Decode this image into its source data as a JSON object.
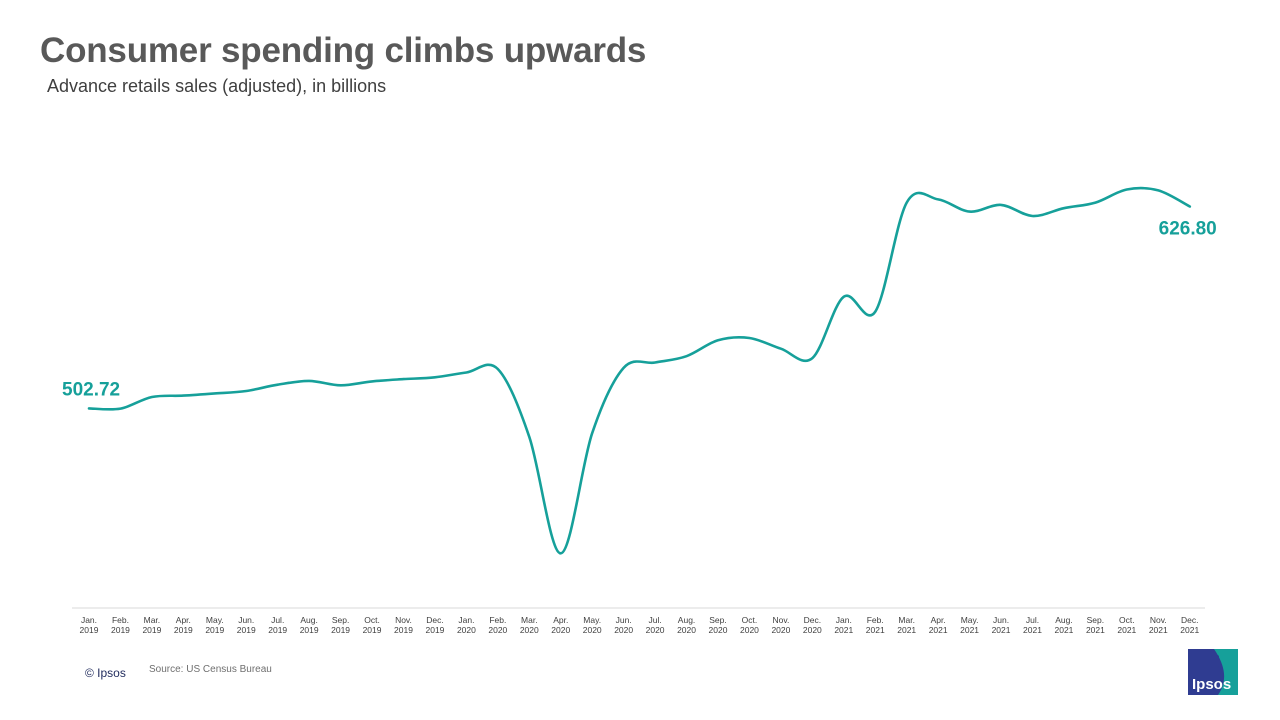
{
  "header": {
    "title": "Consumer spending climbs upwards",
    "subtitle": "Advance retails sales (adjusted), in billions"
  },
  "footer": {
    "copyright": "© Ipsos",
    "source": "Source: US Census Bureau",
    "logo_text": "Ipsos"
  },
  "colors": {
    "line": "#16a09a",
    "axis": "#d9d9d9",
    "tick_label": "#404040",
    "logo_blue": "#2f3c91",
    "logo_teal": "#16a09a"
  },
  "chart_data": {
    "type": "line",
    "title": "Consumer spending climbs upwards",
    "subtitle": "Advance retails sales (adjusted), in billions",
    "categories": [
      [
        "Jan.",
        "2019"
      ],
      [
        "Feb.",
        "2019"
      ],
      [
        "Mar.",
        "2019"
      ],
      [
        "Apr.",
        "2019"
      ],
      [
        "May.",
        "2019"
      ],
      [
        "Jun.",
        "2019"
      ],
      [
        "Jul.",
        "2019"
      ],
      [
        "Aug.",
        "2019"
      ],
      [
        "Sep.",
        "2019"
      ],
      [
        "Oct.",
        "2019"
      ],
      [
        "Nov.",
        "2019"
      ],
      [
        "Dec.",
        "2019"
      ],
      [
        "Jan.",
        "2020"
      ],
      [
        "Feb.",
        "2020"
      ],
      [
        "Mar.",
        "2020"
      ],
      [
        "Apr.",
        "2020"
      ],
      [
        "May.",
        "2020"
      ],
      [
        "Jun.",
        "2020"
      ],
      [
        "Jul.",
        "2020"
      ],
      [
        "Aug.",
        "2020"
      ],
      [
        "Sep.",
        "2020"
      ],
      [
        "Oct.",
        "2020"
      ],
      [
        "Nov.",
        "2020"
      ],
      [
        "Dec.",
        "2020"
      ],
      [
        "Jan.",
        "2021"
      ],
      [
        "Feb.",
        "2021"
      ],
      [
        "Mar.",
        "2021"
      ],
      [
        "Apr.",
        "2021"
      ],
      [
        "May.",
        "2021"
      ],
      [
        "Jun.",
        "2021"
      ],
      [
        "Jul.",
        "2021"
      ],
      [
        "Aug.",
        "2021"
      ],
      [
        "Sep.",
        "2021"
      ],
      [
        "Oct.",
        "2021"
      ],
      [
        "Nov.",
        "2021"
      ],
      [
        "Dec.",
        "2021"
      ]
    ],
    "series": [
      {
        "values": [
          502.72,
          502.6,
          509.7,
          510.6,
          511.9,
          513.4,
          517.3,
          519.6,
          516.9,
          519.3,
          520.7,
          521.8,
          524.8,
          526.9,
          485.2,
          413.6,
          487.5,
          527.6,
          530.9,
          534.8,
          544.6,
          546.0,
          539.4,
          533.6,
          571.4,
          562.2,
          629.2,
          631.2,
          623.7,
          627.8,
          621.0,
          625.8,
          629.2,
          637.3,
          636.7,
          626.8
        ]
      }
    ],
    "data_labels": [
      {
        "index": 0,
        "text": "502.72"
      },
      {
        "index": 35,
        "text": "626.80"
      }
    ],
    "ylim": [
      380,
      680
    ],
    "grid": false,
    "legend": "none",
    "y_axis_visible": false
  }
}
